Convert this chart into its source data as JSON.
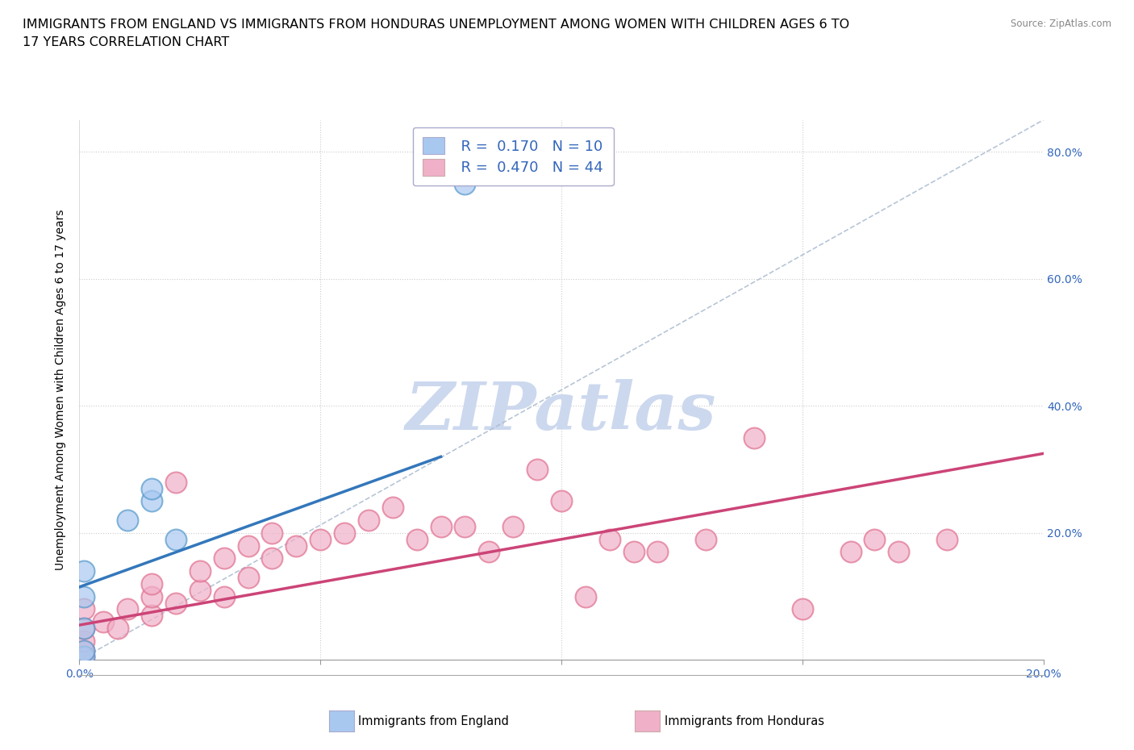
{
  "title_line1": "IMMIGRANTS FROM ENGLAND VS IMMIGRANTS FROM HONDURAS UNEMPLOYMENT AMONG WOMEN WITH CHILDREN AGES 6 TO",
  "title_line2": "17 YEARS CORRELATION CHART",
  "source": "Source: ZipAtlas.com",
  "ylabel": "Unemployment Among Women with Children Ages 6 to 17 years",
  "xlim": [
    0.0,
    0.2
  ],
  "ylim": [
    0.0,
    0.85
  ],
  "x_ticks": [
    0.0,
    0.05,
    0.1,
    0.15,
    0.2
  ],
  "x_tick_labels": [
    "0.0%",
    "",
    "",
    "",
    "20.0%"
  ],
  "y_ticks": [
    0.0,
    0.2,
    0.4,
    0.6,
    0.8
  ],
  "y_tick_labels_right": [
    "",
    "20.0%",
    "40.0%",
    "60.0%",
    "80.0%"
  ],
  "england_color": "#a8c8f0",
  "england_color_dark": "#5599cc",
  "england_line_color": "#3377bb",
  "honduras_color": "#f0b0c8",
  "honduras_color_dark": "#e07090",
  "honduras_line_color": "#cc4477",
  "dashed_line_color": "#aabbd0",
  "watermark": "ZIPatlas",
  "watermark_color": "#ccd8ee",
  "england_R": 0.17,
  "england_N": 10,
  "honduras_R": 0.47,
  "honduras_N": 44,
  "england_scatter_x": [
    0.001,
    0.001,
    0.001,
    0.001,
    0.001,
    0.01,
    0.015,
    0.015,
    0.02,
    0.08
  ],
  "england_scatter_y": [
    0.005,
    0.015,
    0.05,
    0.1,
    0.14,
    0.22,
    0.25,
    0.27,
    0.19,
    0.75
  ],
  "england_line_x": [
    0.0,
    0.075
  ],
  "england_line_y": [
    0.115,
    0.32
  ],
  "honduras_scatter_x": [
    0.001,
    0.001,
    0.001,
    0.001,
    0.001,
    0.005,
    0.008,
    0.01,
    0.015,
    0.015,
    0.015,
    0.02,
    0.02,
    0.025,
    0.025,
    0.03,
    0.03,
    0.035,
    0.035,
    0.04,
    0.04,
    0.045,
    0.05,
    0.055,
    0.06,
    0.065,
    0.07,
    0.075,
    0.08,
    0.085,
    0.09,
    0.095,
    0.1,
    0.105,
    0.11,
    0.115,
    0.12,
    0.13,
    0.14,
    0.15,
    0.16,
    0.165,
    0.17,
    0.18
  ],
  "honduras_scatter_y": [
    0.005,
    0.015,
    0.03,
    0.05,
    0.08,
    0.06,
    0.05,
    0.08,
    0.07,
    0.1,
    0.12,
    0.09,
    0.28,
    0.11,
    0.14,
    0.1,
    0.16,
    0.13,
    0.18,
    0.16,
    0.2,
    0.18,
    0.19,
    0.2,
    0.22,
    0.24,
    0.19,
    0.21,
    0.21,
    0.17,
    0.21,
    0.3,
    0.25,
    0.1,
    0.19,
    0.17,
    0.17,
    0.19,
    0.35,
    0.08,
    0.17,
    0.19,
    0.17,
    0.19
  ],
  "honduras_line_x": [
    0.0,
    0.2
  ],
  "honduras_line_y": [
    0.055,
    0.325
  ],
  "dashed_line_x": [
    0.0,
    0.2
  ],
  "dashed_line_y": [
    0.0,
    0.85
  ],
  "title_fontsize": 11.5,
  "axis_label_fontsize": 10,
  "tick_fontsize": 10,
  "legend_fontsize": 13,
  "scatter_size": 350,
  "scatter_linewidth": 1.5
}
